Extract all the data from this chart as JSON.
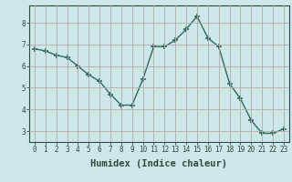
{
  "x": [
    0,
    1,
    2,
    3,
    4,
    5,
    6,
    7,
    8,
    9,
    10,
    11,
    12,
    13,
    14,
    15,
    16,
    17,
    18,
    19,
    20,
    21,
    22,
    23
  ],
  "y": [
    6.8,
    6.7,
    6.5,
    6.4,
    6.0,
    5.6,
    5.3,
    4.7,
    4.2,
    4.2,
    5.4,
    6.9,
    6.9,
    7.2,
    7.7,
    8.3,
    7.3,
    6.9,
    5.2,
    4.5,
    3.5,
    2.9,
    2.9,
    3.1
  ],
  "line_color": "#2e6b5e",
  "marker": "+",
  "marker_size": 5,
  "bg_color": "#cce8e8",
  "grid_color": "#b8a8a8",
  "xlabel": "Humidex (Indice chaleur)",
  "xlim": [
    -0.5,
    23.5
  ],
  "ylim": [
    2.5,
    8.8
  ],
  "yticks": [
    3,
    4,
    5,
    6,
    7,
    8
  ],
  "xticks": [
    0,
    1,
    2,
    3,
    4,
    5,
    6,
    7,
    8,
    9,
    10,
    11,
    12,
    13,
    14,
    15,
    16,
    17,
    18,
    19,
    20,
    21,
    22,
    23
  ],
  "tick_fontsize": 5.5,
  "xlabel_fontsize": 7.5,
  "label_color": "#2e4a3e"
}
